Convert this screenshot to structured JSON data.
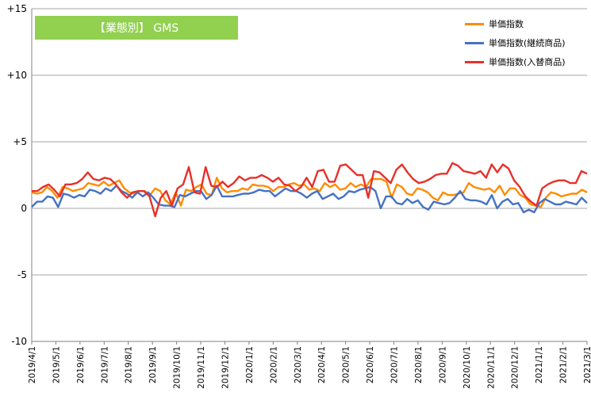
{
  "chart_data": {
    "type": "line",
    "title": "【業態別】 GMS",
    "xlabel": "",
    "ylabel": "",
    "ylim": [
      -10,
      15
    ],
    "yticks": [
      15,
      10,
      5,
      0,
      -5,
      -10
    ],
    "ytick_labels": [
      "+15",
      "+10",
      "+5",
      "0",
      "-5",
      "-10"
    ],
    "grid": "horizontal",
    "legend_position": "top-right",
    "x_tick_labels": [
      "2019/4/1",
      "2019/5/1",
      "2019/6/1",
      "2019/7/1",
      "2019/8/1",
      "2019/9/1",
      "2019/10/1",
      "2019/11/1",
      "2019/12/1",
      "2020/1/1",
      "2020/2/1",
      "2020/3/1",
      "2020/4/1",
      "2020/5/1",
      "2020/6/1",
      "2020/7/1",
      "2020/8/1",
      "2020/9/1",
      "2020/10/1",
      "2020/11/1",
      "2020/12/1",
      "2021/1/1",
      "2021/2/1",
      "2021/3/1"
    ],
    "series": [
      {
        "name": "単価指数",
        "color": "#ff8c00",
        "values": [
          1.2,
          1.1,
          1.2,
          1.6,
          1.3,
          0.8,
          1.6,
          1.5,
          1.3,
          1.4,
          1.5,
          1.9,
          1.8,
          1.7,
          2.0,
          1.7,
          1.9,
          2.1,
          1.5,
          1.2,
          1.1,
          1.3,
          1.3,
          1.0,
          1.5,
          1.3,
          0.6,
          0.3,
          1.2,
          0.2,
          1.4,
          1.3,
          1.6,
          1.8,
          1.1,
          1.0,
          2.3,
          1.5,
          1.2,
          1.3,
          1.3,
          1.5,
          1.4,
          1.8,
          1.7,
          1.7,
          1.6,
          1.3,
          1.6,
          1.6,
          1.8,
          1.9,
          1.7,
          1.8,
          1.4,
          1.5,
          1.3,
          1.9,
          1.6,
          1.8,
          1.4,
          1.5,
          1.9,
          1.6,
          1.8,
          1.6,
          2.2,
          2.2,
          2.2,
          2.0,
          0.8,
          1.8,
          1.6,
          1.1,
          1.0,
          1.5,
          1.4,
          1.2,
          0.8,
          0.6,
          1.2,
          1.0,
          1.0,
          1.1,
          1.2,
          1.9,
          1.6,
          1.5,
          1.4,
          1.5,
          1.2,
          1.7,
          1.0,
          1.5,
          1.5,
          1.0,
          0.8,
          0.3,
          0.2,
          0.1,
          0.8,
          1.2,
          1.1,
          0.9,
          1.0,
          1.1,
          1.1,
          1.4,
          1.2
        ]
      },
      {
        "name": "単価指数(継続商品)",
        "color": "#4472c4",
        "values": [
          0.1,
          0.5,
          0.5,
          0.9,
          0.8,
          0.1,
          1.1,
          1.0,
          0.8,
          1.0,
          0.9,
          1.4,
          1.3,
          1.1,
          1.5,
          1.3,
          1.7,
          1.3,
          1.1,
          0.8,
          1.2,
          0.9,
          1.2,
          0.8,
          0.3,
          0.2,
          0.2,
          0.1,
          1.0,
          0.9,
          1.1,
          1.3,
          1.3,
          0.7,
          1.0,
          1.7,
          0.9,
          0.9,
          0.9,
          1.0,
          1.1,
          1.1,
          1.2,
          1.4,
          1.3,
          1.3,
          0.9,
          1.2,
          1.5,
          1.3,
          1.3,
          1.1,
          0.8,
          1.1,
          1.3,
          0.7,
          0.9,
          1.1,
          0.7,
          0.9,
          1.3,
          1.2,
          1.4,
          1.5,
          1.6,
          1.3,
          0.0,
          0.9,
          0.9,
          0.4,
          0.3,
          0.7,
          0.4,
          0.6,
          0.1,
          -0.1,
          0.5,
          0.4,
          0.3,
          0.4,
          0.8,
          1.3,
          0.7,
          0.6,
          0.6,
          0.5,
          0.3,
          1.0,
          0.0,
          0.5,
          0.7,
          0.3,
          0.4,
          -0.3,
          -0.1,
          -0.3,
          0.4,
          0.7,
          0.5,
          0.3,
          0.3,
          0.5,
          0.4,
          0.3,
          0.8,
          0.4
        ]
      },
      {
        "name": "単価指数(入替商品)",
        "color": "#e8302a",
        "values": [
          1.3,
          1.3,
          1.6,
          1.8,
          1.4,
          0.9,
          1.8,
          1.8,
          1.9,
          2.2,
          2.7,
          2.2,
          2.1,
          2.3,
          2.2,
          1.8,
          1.2,
          0.8,
          1.2,
          1.3,
          1.3,
          0.9,
          -0.6,
          0.8,
          1.3,
          0.2,
          1.5,
          1.8,
          3.1,
          1.2,
          1.1,
          3.1,
          1.7,
          1.6,
          2.0,
          1.6,
          1.9,
          2.4,
          2.1,
          2.3,
          2.3,
          2.5,
          2.3,
          2.0,
          2.3,
          1.8,
          1.7,
          1.3,
          1.6,
          2.3,
          1.6,
          2.8,
          2.9,
          2.0,
          2.0,
          3.2,
          3.3,
          2.9,
          2.5,
          2.5,
          0.8,
          2.8,
          2.7,
          2.3,
          1.9,
          2.9,
          3.3,
          2.7,
          2.2,
          1.9,
          2.0,
          2.2,
          2.5,
          2.6,
          2.6,
          3.4,
          3.2,
          2.8,
          2.7,
          2.6,
          2.8,
          2.3,
          3.3,
          2.7,
          3.3,
          3.0,
          2.1,
          1.6,
          0.9,
          0.5,
          0.2,
          1.5,
          1.8,
          2.0,
          2.1,
          2.1,
          1.9,
          1.9,
          2.8,
          2.6
        ]
      }
    ]
  }
}
